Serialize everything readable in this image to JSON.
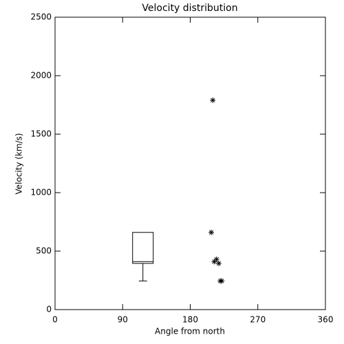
{
  "chart_data": {
    "type": "scatter",
    "title": "Velocity distribution",
    "x_label": "Angle from north",
    "y_label": "Velocity (km/s)",
    "x": [
      210,
      208,
      212,
      215,
      218,
      220,
      222
    ],
    "values": [
      1790,
      660,
      410,
      430,
      395,
      245,
      245
    ],
    "color": "#000000",
    "box": {
      "x": 117,
      "min": 245,
      "q1": 395,
      "median": 410,
      "q3": 660,
      "max": 660
    },
    "xlim": [
      0,
      360
    ],
    "xticks": [
      0,
      90,
      180,
      270,
      360
    ],
    "ylim": [
      0,
      2500
    ],
    "yticks": [
      0,
      500,
      1000,
      1500,
      2000,
      2500
    ]
  }
}
